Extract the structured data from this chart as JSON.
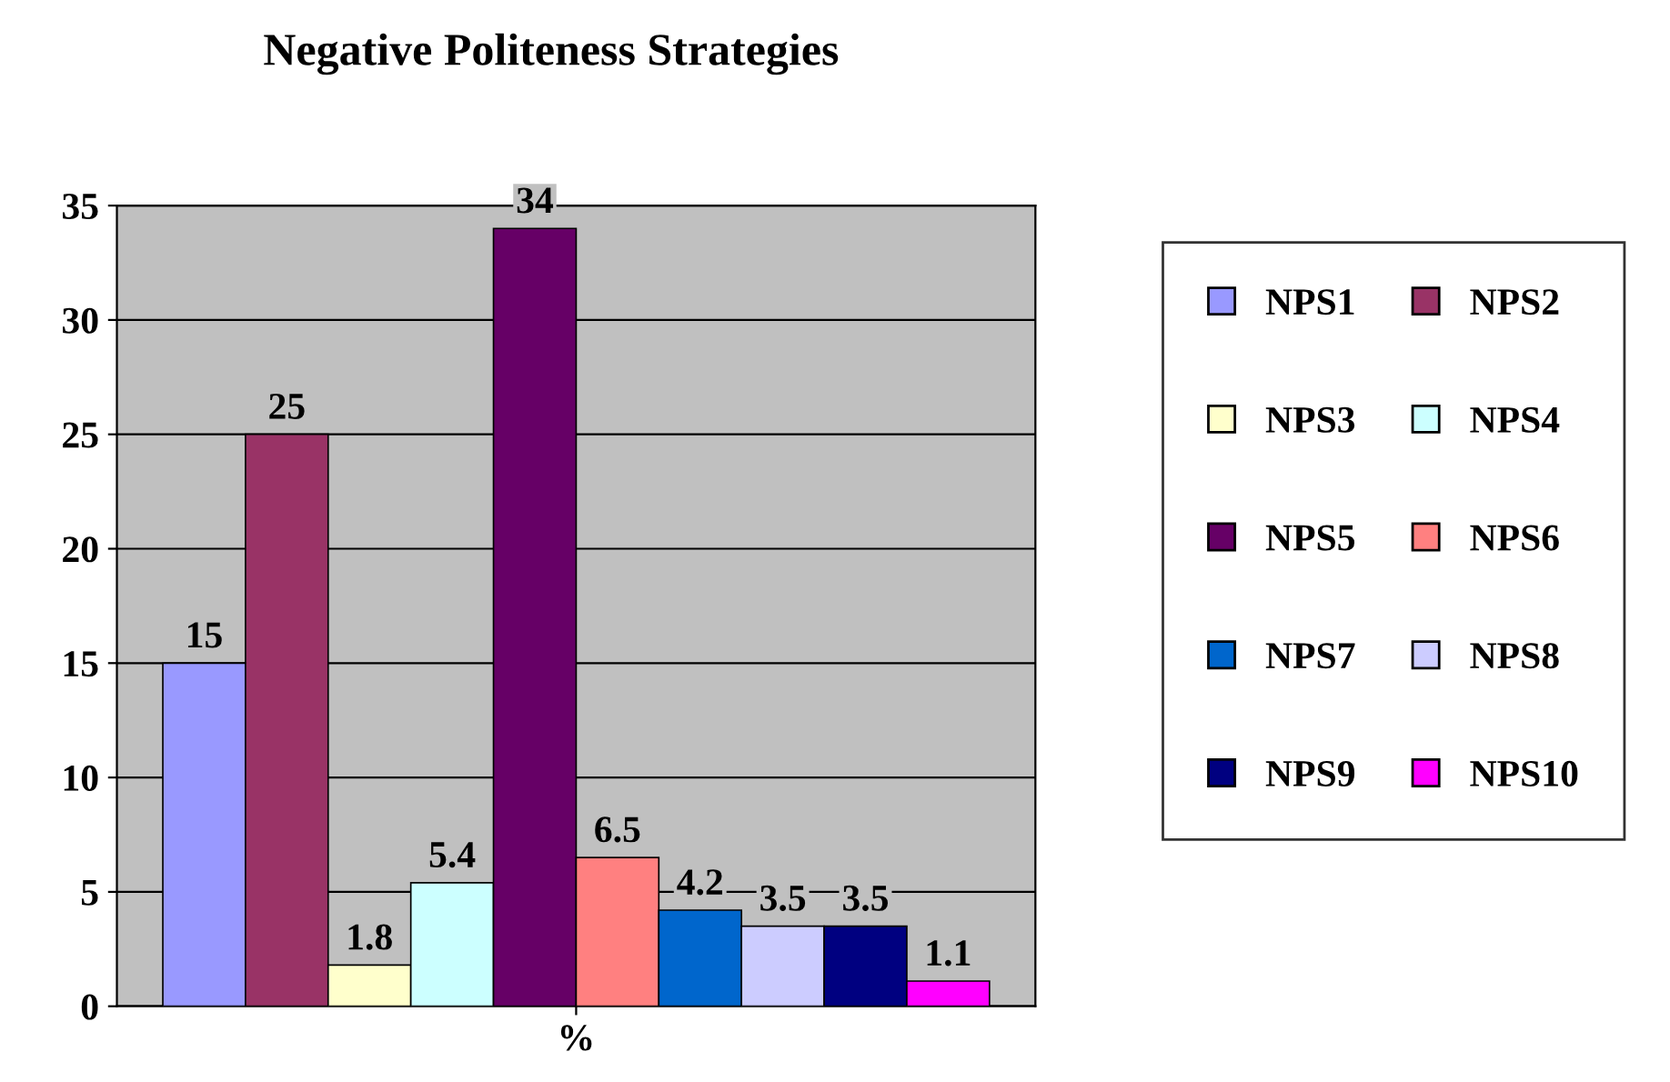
{
  "chart_data": {
    "type": "bar",
    "title": "Negative Politeness Strategies",
    "categories": [
      "%"
    ],
    "series": [
      {
        "name": "NPS1",
        "color": "#9999ff",
        "values": [
          15
        ]
      },
      {
        "name": "NPS2",
        "color": "#993366",
        "values": [
          25
        ]
      },
      {
        "name": "NPS3",
        "color": "#ffffcc",
        "values": [
          1.8
        ]
      },
      {
        "name": "NPS4",
        "color": "#ccffff",
        "values": [
          5.4
        ]
      },
      {
        "name": "NPS5",
        "color": "#660066",
        "values": [
          34
        ]
      },
      {
        "name": "NPS6",
        "color": "#ff8080",
        "values": [
          6.5
        ]
      },
      {
        "name": "NPS7",
        "color": "#0066cc",
        "values": [
          4.2
        ]
      },
      {
        "name": "NPS8",
        "color": "#ccccff",
        "values": [
          3.5
        ]
      },
      {
        "name": "NPS9",
        "color": "#000080",
        "values": [
          3.5
        ]
      },
      {
        "name": "NPS10",
        "color": "#ff00ff",
        "values": [
          1.1
        ]
      }
    ],
    "ylim": [
      0,
      35
    ],
    "yticks": [
      0,
      5,
      10,
      15,
      20,
      25,
      30,
      35
    ],
    "grid": "y",
    "legend": "right",
    "data_labels": true
  }
}
